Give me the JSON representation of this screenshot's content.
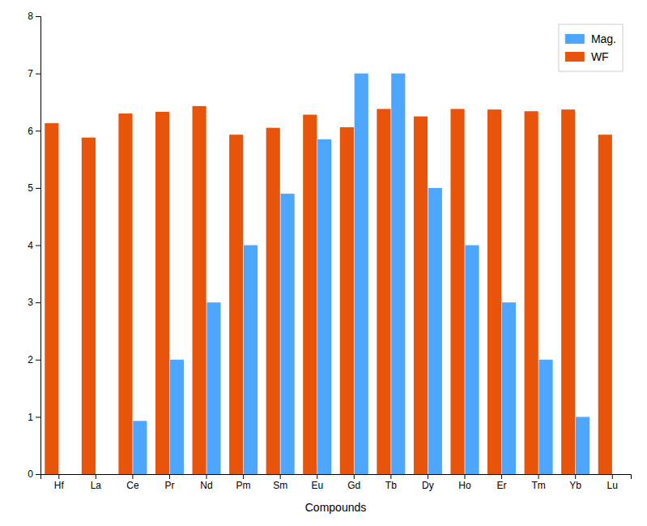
{
  "chart_data": {
    "type": "bar",
    "categories": [
      "Hf",
      "La",
      "Ce",
      "Pr",
      "Nd",
      "Pm",
      "Sm",
      "Eu",
      "Gd",
      "Tb",
      "Dy",
      "Ho",
      "Er",
      "Tm",
      "Yb",
      "Lu"
    ],
    "series": [
      {
        "name": "WF",
        "color": "#e8540a",
        "values": [
          6.13,
          5.88,
          6.3,
          6.33,
          6.43,
          5.93,
          6.05,
          6.28,
          6.06,
          6.38,
          6.25,
          6.38,
          6.37,
          6.34,
          6.37,
          5.93
        ]
      },
      {
        "name": "Mag.",
        "color": "#4da6ff",
        "values": [
          0,
          0,
          0.93,
          2.0,
          3.0,
          4.0,
          4.9,
          5.85,
          7.0,
          7.0,
          5.0,
          4.0,
          3.0,
          2.0,
          1.0,
          0
        ]
      }
    ],
    "xlabel": "Compounds",
    "ylim": [
      0,
      8
    ],
    "yticks": [
      0,
      1,
      2,
      3,
      4,
      5,
      6,
      7,
      8
    ],
    "grid": false,
    "legend": "upper right"
  }
}
